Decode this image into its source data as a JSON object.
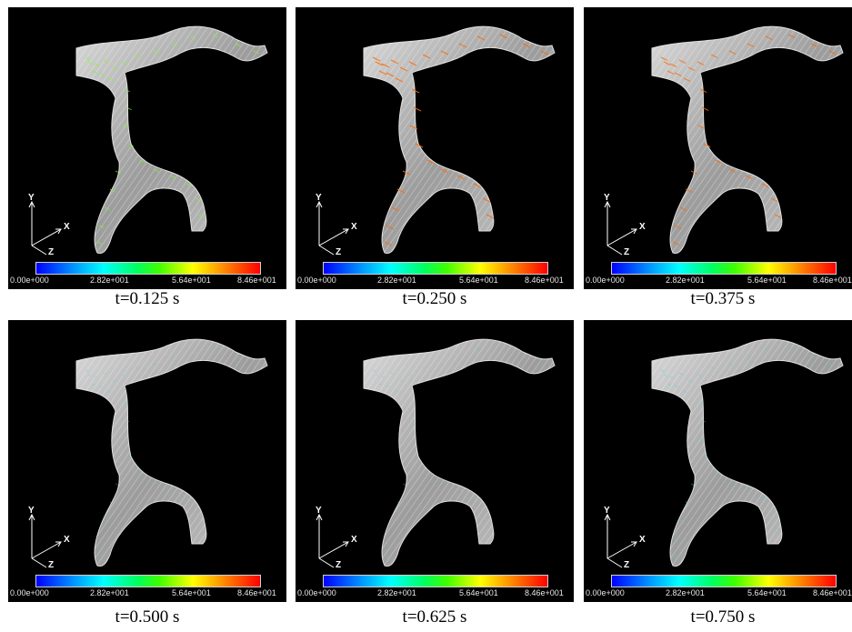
{
  "colorbar": {
    "ticks": [
      "0.00e+000",
      "2.82e+001",
      "5.64e+001",
      "8.46e+001"
    ]
  },
  "axes": {
    "x": "X",
    "y": "Y",
    "z": "Z"
  },
  "panels": [
    {
      "caption": "t=0.125 s",
      "velocity_level": 0.55
    },
    {
      "caption": "t=0.250 s",
      "velocity_level": 0.95
    },
    {
      "caption": "t=0.375 s",
      "velocity_level": 0.8
    },
    {
      "caption": "t=0.500 s",
      "velocity_level": 0.15
    },
    {
      "caption": "t=0.625 s",
      "velocity_level": 0.1
    },
    {
      "caption": "t=0.750 s",
      "velocity_level": 0.25
    }
  ]
}
